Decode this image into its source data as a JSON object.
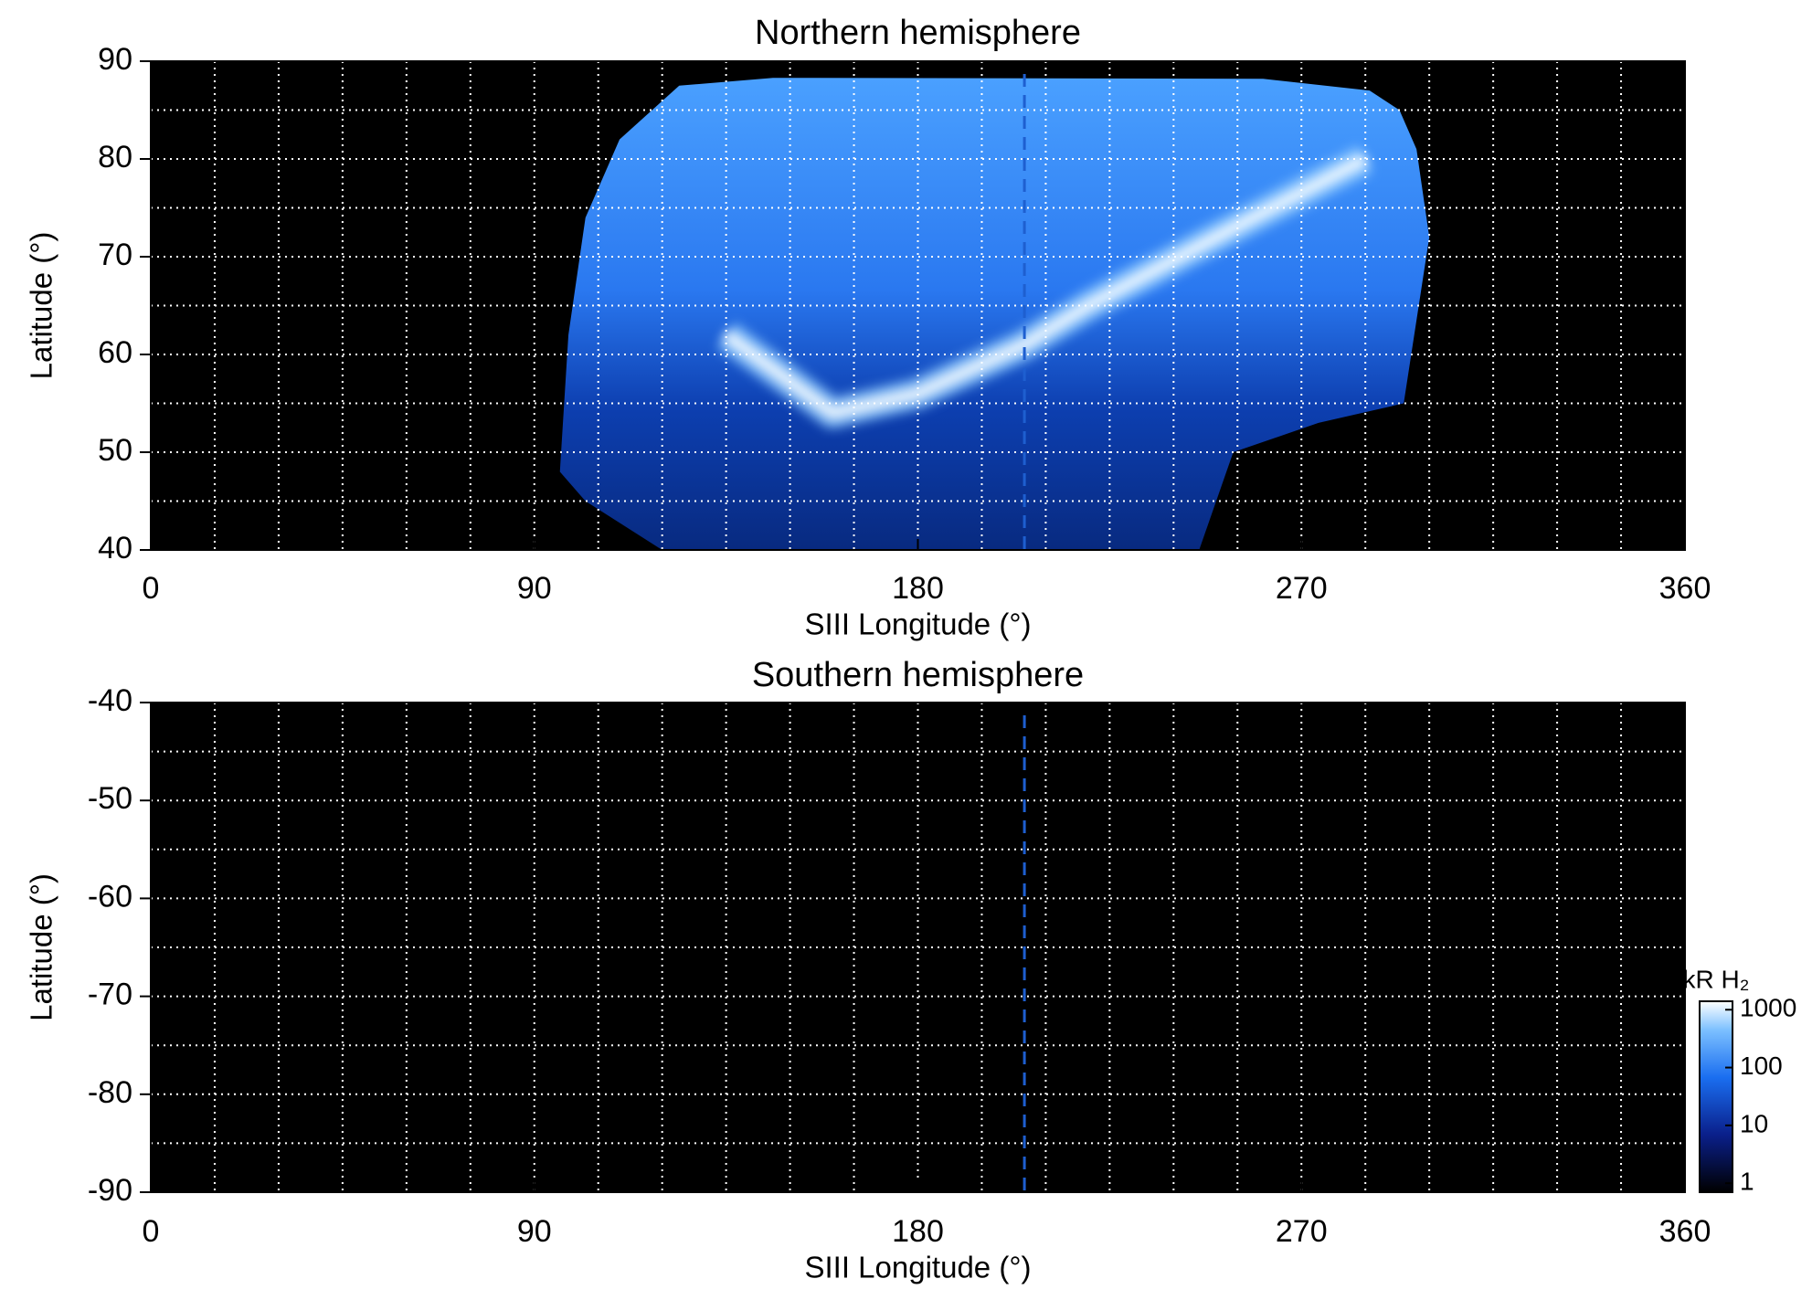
{
  "chart_data": [
    {
      "type": "heatmap",
      "title": "Northern hemisphere",
      "xlabel": "SIII Longitude (°)",
      "ylabel": "Latitude (°)",
      "xlim": [
        0,
        360
      ],
      "xticks": [
        0,
        90,
        180,
        270,
        360
      ],
      "ylim": [
        40,
        90
      ],
      "yticks": [
        40,
        50,
        60,
        70,
        80,
        90
      ],
      "grid": true,
      "xgrid": [
        15,
        30,
        45,
        60,
        75,
        105,
        120,
        135,
        150,
        165,
        195,
        210,
        225,
        240,
        255,
        285,
        300,
        315,
        330,
        345
      ],
      "ygrid": [
        45,
        55,
        65,
        75,
        85
      ],
      "reference_line": {
        "x": 205,
        "color": "#1e5fd0"
      }
    },
    {
      "type": "heatmap",
      "title": "Southern hemisphere",
      "xlabel": "SIII Longitude (°)",
      "ylabel": "Latitude (°)",
      "xlim": [
        0,
        360
      ],
      "xticks": [
        0,
        90,
        180,
        270,
        360
      ],
      "ylim": [
        -90,
        -40
      ],
      "yticks": [
        -90,
        -80,
        -70,
        -60,
        -50,
        -40
      ],
      "grid": true,
      "xgrid": [
        15,
        30,
        45,
        60,
        75,
        105,
        120,
        135,
        150,
        165,
        195,
        210,
        225,
        240,
        255,
        285,
        300,
        315,
        330,
        345
      ],
      "ygrid": [
        -85,
        -75,
        -65,
        -55,
        -45
      ],
      "reference_line": {
        "x": 205,
        "color": "#1e5fd0"
      },
      "colorbar": {
        "label": "kR H₂",
        "scale": "log",
        "lim": [
          0.7,
          1400
        ],
        "ticks": [
          1,
          10,
          100,
          1000
        ]
      }
    }
  ]
}
